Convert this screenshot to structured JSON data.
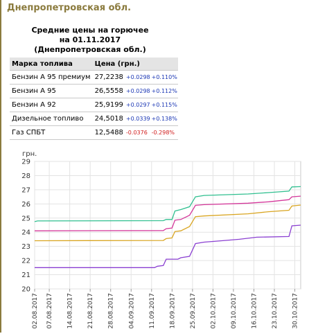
{
  "page": {
    "region_title": "Днепропетровская обл.",
    "table_title": [
      "Средние цены на горючее",
      "на 01.11.2017",
      "(Днепропетровская обл.)"
    ],
    "columns": [
      "Марка топлива",
      "Цена (грн.)"
    ]
  },
  "prices": [
    {
      "name": "Бензин А 95 премиум",
      "price": "27,2238",
      "abs": "+0.0298",
      "pct": "+0.110%",
      "dir": "up"
    },
    {
      "name": "Бензин А 95",
      "price": "26,5558",
      "abs": "+0.0298",
      "pct": "+0.112%",
      "dir": "up"
    },
    {
      "name": "Бензин А 92",
      "price": "25,9199",
      "abs": "+0.0297",
      "pct": "+0.115%",
      "dir": "up"
    },
    {
      "name": "Дизельное топливо",
      "price": "24,5018",
      "abs": "+0.0339",
      "pct": "+0.138%",
      "dir": "up"
    },
    {
      "name": "Газ СПБТ",
      "price": "12,5488",
      "abs": "-0.0376",
      "pct": "-0.298%",
      "dir": "down"
    }
  ],
  "colors": {
    "up": "#1a36b4",
    "down": "#d11c1c",
    "frame": "#8b7b3e"
  },
  "chart_data": {
    "type": "line",
    "ylabel": "грн.",
    "ylim": [
      20,
      29
    ],
    "yticks": [
      20,
      21,
      22,
      23,
      24,
      25,
      26,
      27,
      28,
      29
    ],
    "grid": true,
    "x_range": [
      "02.08.2017",
      "01.11.2017"
    ],
    "xticks": [
      "02.08.2017",
      "07.08.2017",
      "14.08.2017",
      "21.08.2017",
      "28.08.2017",
      "04.09.2017",
      "11.09.2017",
      "18.09.2017",
      "25.09.2017",
      "02.10.2017",
      "09.10.2017",
      "16.10.2017",
      "23.10.2017",
      "30.10.2017"
    ],
    "series": [
      {
        "color": "#2fbf8f",
        "points": [
          [
            "02.08.2017",
            24.75
          ],
          [
            "03.08.2017",
            24.8
          ],
          [
            "15.09.2017",
            24.82
          ],
          [
            "16.09.2017",
            24.9
          ],
          [
            "18.09.2017",
            24.9
          ],
          [
            "19.09.2017",
            25.5
          ],
          [
            "21.09.2017",
            25.6
          ],
          [
            "24.09.2017",
            25.8
          ],
          [
            "26.09.2017",
            26.5
          ],
          [
            "29.09.2017",
            26.6
          ],
          [
            "14.10.2017",
            26.7
          ],
          [
            "21.10.2017",
            26.8
          ],
          [
            "28.10.2017",
            26.9
          ],
          [
            "29.10.2017",
            27.2
          ],
          [
            "01.11.2017",
            27.22
          ]
        ]
      },
      {
        "color": "#d4379a",
        "points": [
          [
            "02.08.2017",
            24.1
          ],
          [
            "15.09.2017",
            24.12
          ],
          [
            "16.09.2017",
            24.25
          ],
          [
            "18.09.2017",
            24.3
          ],
          [
            "19.09.2017",
            24.85
          ],
          [
            "21.09.2017",
            24.9
          ],
          [
            "24.09.2017",
            25.2
          ],
          [
            "26.09.2017",
            25.9
          ],
          [
            "29.09.2017",
            25.95
          ],
          [
            "14.10.2017",
            26.05
          ],
          [
            "21.10.2017",
            26.15
          ],
          [
            "28.10.2017",
            26.3
          ],
          [
            "29.10.2017",
            26.5
          ],
          [
            "01.11.2017",
            26.55
          ]
        ]
      },
      {
        "color": "#d9a521",
        "points": [
          [
            "02.08.2017",
            23.4
          ],
          [
            "15.09.2017",
            23.42
          ],
          [
            "16.09.2017",
            23.55
          ],
          [
            "18.09.2017",
            23.6
          ],
          [
            "19.09.2017",
            24.05
          ],
          [
            "21.09.2017",
            24.1
          ],
          [
            "24.09.2017",
            24.4
          ],
          [
            "26.09.2017",
            25.1
          ],
          [
            "29.09.2017",
            25.15
          ],
          [
            "14.10.2017",
            25.3
          ],
          [
            "21.10.2017",
            25.45
          ],
          [
            "28.10.2017",
            25.55
          ],
          [
            "29.10.2017",
            25.85
          ],
          [
            "01.11.2017",
            25.92
          ]
        ]
      },
      {
        "color": "#8a3fd1",
        "points": [
          [
            "02.08.2017",
            21.5
          ],
          [
            "12.09.2017",
            21.5
          ],
          [
            "13.09.2017",
            21.6
          ],
          [
            "15.09.2017",
            21.65
          ],
          [
            "16.09.2017",
            22.1
          ],
          [
            "20.09.2017",
            22.1
          ],
          [
            "21.09.2017",
            22.2
          ],
          [
            "24.09.2017",
            22.3
          ],
          [
            "26.09.2017",
            23.2
          ],
          [
            "29.09.2017",
            23.3
          ],
          [
            "05.10.2017",
            23.4
          ],
          [
            "11.10.2017",
            23.5
          ],
          [
            "17.10.2017",
            23.65
          ],
          [
            "28.10.2017",
            23.7
          ],
          [
            "29.10.2017",
            24.45
          ],
          [
            "01.11.2017",
            24.5
          ]
        ]
      }
    ]
  }
}
